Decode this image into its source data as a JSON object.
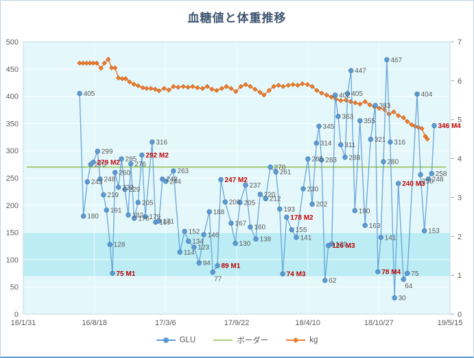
{
  "title": "血糖値と体重推移",
  "colors": {
    "title_text": "#3F5672",
    "axis_text": "#595959",
    "data_label_text": "#595959",
    "annotation_text": "#C00000",
    "glu_series": "#5B9BD5",
    "border_series": "#A9CE7A",
    "kg_series": "#ED7D31",
    "plot_background": "#E4F8FB",
    "normal_band": "#BCEDF4",
    "gridline": "#FFFFFF",
    "plot_border": "#C5D9E0"
  },
  "legend": {
    "glu": {
      "label": "GLU"
    },
    "border": {
      "label": "ボーダー"
    },
    "kg": {
      "label": "kg"
    }
  },
  "chart_data": {
    "type": "line",
    "title": "血糖値と体重推移",
    "x_axis": {
      "tick_labels": [
        "16/1/31",
        "16/8/18",
        "17/3/6",
        "17/9/22",
        "18/4/10",
        "18/10/27",
        "19/5/15"
      ]
    },
    "y_axis_left": {
      "min": 0,
      "max": 500,
      "step": 50,
      "tick_labels": [
        0,
        50,
        100,
        150,
        200,
        250,
        300,
        350,
        400,
        450,
        500
      ],
      "series": "GLU"
    },
    "y_axis_right": {
      "min": 0,
      "max": 7,
      "step": 1,
      "tick_labels": [
        0,
        1,
        2,
        3,
        4,
        5,
        6,
        7
      ],
      "series": "kg"
    },
    "normal_band": {
      "from": 70,
      "to": 150
    },
    "border_value": 270,
    "annotations": [
      "75 M1",
      "89 M1",
      "279 M2",
      "292 M2",
      "247 M2",
      "178 M2",
      "74 M3",
      "126 M3",
      "240 M3",
      "78 M4",
      "346 M4"
    ],
    "series": [
      {
        "name": "GLU",
        "axis": "left",
        "marker": "circle",
        "points": [
          {
            "x": 0.132,
            "v": 405
          },
          {
            "x": 0.141,
            "v": 180
          },
          {
            "x": 0.15,
            "v": 243
          },
          {
            "x": 0.158,
            "v": 275
          },
          {
            "x": 0.164,
            "v": 279,
            "a": "M2"
          },
          {
            "x": 0.174,
            "v": 299
          },
          {
            "x": 0.18,
            "v": 248
          },
          {
            "x": 0.188,
            "v": 219
          },
          {
            "x": 0.195,
            "v": 191
          },
          {
            "x": 0.203,
            "v": 128
          },
          {
            "x": 0.209,
            "v": 75,
            "a": "M1"
          },
          {
            "x": 0.215,
            "v": 260
          },
          {
            "x": 0.223,
            "v": 233
          },
          {
            "x": 0.23,
            "v": 285
          },
          {
            "x": 0.238,
            "v": 229
          },
          {
            "x": 0.246,
            "v": 182
          },
          {
            "x": 0.252,
            "v": 276
          },
          {
            "x": 0.26,
            "v": 176
          },
          {
            "x": 0.269,
            "v": 205
          },
          {
            "x": 0.278,
            "v": 292,
            "a": "M2"
          },
          {
            "x": 0.286,
            "v": 179
          },
          {
            "x": 0.302,
            "v": 316
          },
          {
            "x": 0.31,
            "v": 169
          },
          {
            "x": 0.318,
            "v": 171
          },
          {
            "x": 0.326,
            "v": 248
          },
          {
            "x": 0.334,
            "v": 244
          },
          {
            "x": 0.352,
            "v": 263
          },
          {
            "x": 0.367,
            "v": 114
          },
          {
            "x": 0.378,
            "v": 152
          },
          {
            "x": 0.387,
            "v": 134
          },
          {
            "x": 0.4,
            "v": 123
          },
          {
            "x": 0.412,
            "v": 94
          },
          {
            "x": 0.423,
            "v": 146
          },
          {
            "x": 0.436,
            "v": 188
          },
          {
            "x": 0.444,
            "v": 77,
            "lp": "b"
          },
          {
            "x": 0.455,
            "v": 89,
            "a": "M1"
          },
          {
            "x": 0.463,
            "v": 247,
            "a": "M2"
          },
          {
            "x": 0.473,
            "v": 206
          },
          {
            "x": 0.487,
            "v": 167
          },
          {
            "x": 0.497,
            "v": 130
          },
          {
            "x": 0.508,
            "v": 205
          },
          {
            "x": 0.521,
            "v": 237
          },
          {
            "x": 0.532,
            "v": 160
          },
          {
            "x": 0.545,
            "v": 138
          },
          {
            "x": 0.555,
            "v": 220
          },
          {
            "x": 0.568,
            "v": 212
          },
          {
            "x": 0.579,
            "v": 270
          },
          {
            "x": 0.592,
            "v": 261
          },
          {
            "x": 0.601,
            "v": 193
          },
          {
            "x": 0.608,
            "v": 74,
            "a": "M3"
          },
          {
            "x": 0.617,
            "v": 178,
            "a": "M2"
          },
          {
            "x": 0.629,
            "v": 155
          },
          {
            "x": 0.64,
            "v": 141
          },
          {
            "x": 0.656,
            "v": 230
          },
          {
            "x": 0.667,
            "v": 285
          },
          {
            "x": 0.677,
            "v": 202
          },
          {
            "x": 0.687,
            "v": 314
          },
          {
            "x": 0.693,
            "v": 345
          },
          {
            "x": 0.699,
            "v": 283
          },
          {
            "x": 0.707,
            "v": 62
          },
          {
            "x": 0.715,
            "v": 126,
            "a": "M3"
          },
          {
            "x": 0.723,
            "v": 129
          },
          {
            "x": 0.731,
            "v": 402
          },
          {
            "x": 0.738,
            "v": 363
          },
          {
            "x": 0.744,
            "v": 311
          },
          {
            "x": 0.754,
            "v": 288
          },
          {
            "x": 0.76,
            "v": 405
          },
          {
            "x": 0.768,
            "v": 447
          },
          {
            "x": 0.777,
            "v": 190
          },
          {
            "x": 0.789,
            "v": 355
          },
          {
            "x": 0.801,
            "v": 163
          },
          {
            "x": 0.814,
            "v": 321
          },
          {
            "x": 0.825,
            "v": 383
          },
          {
            "x": 0.831,
            "v": 78,
            "a": "M4"
          },
          {
            "x": 0.838,
            "v": 141
          },
          {
            "x": 0.844,
            "v": 280
          },
          {
            "x": 0.852,
            "v": 467
          },
          {
            "x": 0.86,
            "v": 316
          },
          {
            "x": 0.87,
            "v": 30
          },
          {
            "x": 0.879,
            "v": 240,
            "a": "M3"
          },
          {
            "x": 0.891,
            "v": 64,
            "lp": "b"
          },
          {
            "x": 0.9,
            "v": 75
          },
          {
            "x": 0.923,
            "v": 404
          },
          {
            "x": 0.931,
            "v": 256,
            "lp": "b"
          },
          {
            "x": 0.94,
            "v": 153
          },
          {
            "x": 0.949,
            "v": 248
          },
          {
            "x": 0.957,
            "v": 258
          },
          {
            "x": 0.963,
            "v": 346,
            "a": "M4"
          }
        ]
      },
      {
        "name": "ボーダー",
        "axis": "left",
        "marker": "none",
        "value": 270
      },
      {
        "name": "kg",
        "axis": "right",
        "marker": "diamond",
        "points": [
          [
            0.132,
            6.45
          ],
          [
            0.14,
            6.45
          ],
          [
            0.148,
            6.45
          ],
          [
            0.156,
            6.45
          ],
          [
            0.164,
            6.45
          ],
          [
            0.172,
            6.45
          ],
          [
            0.182,
            6.32
          ],
          [
            0.19,
            6.45
          ],
          [
            0.199,
            6.55
          ],
          [
            0.207,
            6.33
          ],
          [
            0.215,
            6.33
          ],
          [
            0.223,
            6.07
          ],
          [
            0.232,
            6.05
          ],
          [
            0.24,
            6.05
          ],
          [
            0.249,
            5.97
          ],
          [
            0.259,
            5.91
          ],
          [
            0.269,
            5.87
          ],
          [
            0.28,
            5.82
          ],
          [
            0.289,
            5.8
          ],
          [
            0.299,
            5.8
          ],
          [
            0.309,
            5.78
          ],
          [
            0.318,
            5.74
          ],
          [
            0.33,
            5.8
          ],
          [
            0.341,
            5.76
          ],
          [
            0.352,
            5.85
          ],
          [
            0.363,
            5.83
          ],
          [
            0.375,
            5.85
          ],
          [
            0.386,
            5.83
          ],
          [
            0.397,
            5.85
          ],
          [
            0.408,
            5.82
          ],
          [
            0.42,
            5.8
          ],
          [
            0.431,
            5.85
          ],
          [
            0.442,
            5.78
          ],
          [
            0.453,
            5.75
          ],
          [
            0.465,
            5.8
          ],
          [
            0.476,
            5.85
          ],
          [
            0.487,
            5.8
          ],
          [
            0.498,
            5.72
          ],
          [
            0.51,
            5.85
          ],
          [
            0.521,
            5.9
          ],
          [
            0.532,
            5.85
          ],
          [
            0.543,
            5.78
          ],
          [
            0.555,
            5.7
          ],
          [
            0.564,
            5.63
          ],
          [
            0.576,
            5.75
          ],
          [
            0.587,
            5.85
          ],
          [
            0.598,
            5.88
          ],
          [
            0.609,
            5.85
          ],
          [
            0.621,
            5.88
          ],
          [
            0.632,
            5.9
          ],
          [
            0.643,
            5.88
          ],
          [
            0.654,
            5.92
          ],
          [
            0.666,
            5.9
          ],
          [
            0.677,
            5.85
          ],
          [
            0.688,
            5.75
          ],
          [
            0.699,
            5.68
          ],
          [
            0.711,
            5.63
          ],
          [
            0.722,
            5.58
          ],
          [
            0.733,
            5.52
          ],
          [
            0.744,
            5.49
          ],
          [
            0.756,
            5.5
          ],
          [
            0.767,
            5.46
          ],
          [
            0.778,
            5.43
          ],
          [
            0.789,
            5.4
          ],
          [
            0.801,
            5.46
          ],
          [
            0.812,
            5.38
          ],
          [
            0.823,
            5.33
          ],
          [
            0.834,
            5.29
          ],
          [
            0.846,
            5.26
          ],
          [
            0.857,
            5.14
          ],
          [
            0.868,
            5.2
          ],
          [
            0.879,
            5.1
          ],
          [
            0.891,
            5.05
          ],
          [
            0.9,
            4.95
          ],
          [
            0.91,
            4.87
          ],
          [
            0.918,
            4.83
          ],
          [
            0.926,
            4.8
          ],
          [
            0.934,
            4.77
          ],
          [
            0.942,
            4.57
          ],
          [
            0.947,
            4.5
          ]
        ]
      }
    ]
  }
}
